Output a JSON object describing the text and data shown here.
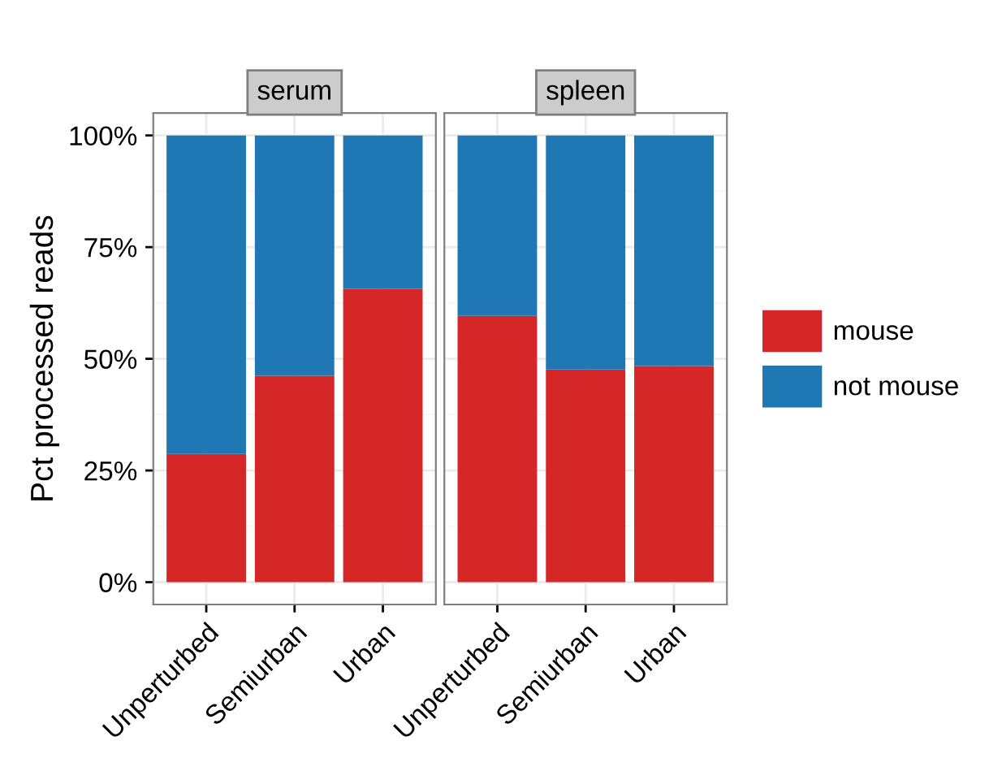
{
  "chart_data": [
    {
      "type": "bar",
      "title": "serum",
      "ylabel": "Pct processed reads",
      "categories": [
        "Unperturbed",
        "Semiurban",
        "Urban"
      ],
      "stacked": true,
      "series": [
        {
          "name": "mouse",
          "color": "#d62728",
          "values": [
            28.7,
            46.2,
            65.6
          ]
        },
        {
          "name": "not mouse",
          "color": "#1f77b4",
          "values": [
            71.3,
            53.8,
            34.4
          ]
        }
      ],
      "ylim": [
        -5,
        105
      ],
      "yticks": [
        {
          "value": 0,
          "label": "0%"
        },
        {
          "value": 25,
          "label": "25%"
        },
        {
          "value": 50,
          "label": "50%"
        },
        {
          "value": 75,
          "label": "75%"
        },
        {
          "value": 100,
          "label": "100%"
        }
      ],
      "grid": true,
      "legend": "right"
    },
    {
      "type": "bar",
      "title": "spleen",
      "categories": [
        "Unperturbed",
        "Semiurban",
        "Urban"
      ],
      "stacked": true,
      "series": [
        {
          "color": "#d62728",
          "values": [
            59.6,
            47.6,
            48.4
          ]
        },
        {
          "color": "#1f77b4",
          "values": [
            40.4,
            52.4,
            51.6
          ]
        }
      ],
      "ylim": [
        -5,
        105
      ],
      "yticks": [
        {
          "value": 0,
          "label": null
        },
        {
          "value": 25,
          "label": null
        },
        {
          "value": 50,
          "label": null
        },
        {
          "value": 75,
          "label": null
        },
        {
          "value": 100,
          "label": null
        }
      ],
      "grid": true,
      "tick_labels": "x"
    }
  ]
}
